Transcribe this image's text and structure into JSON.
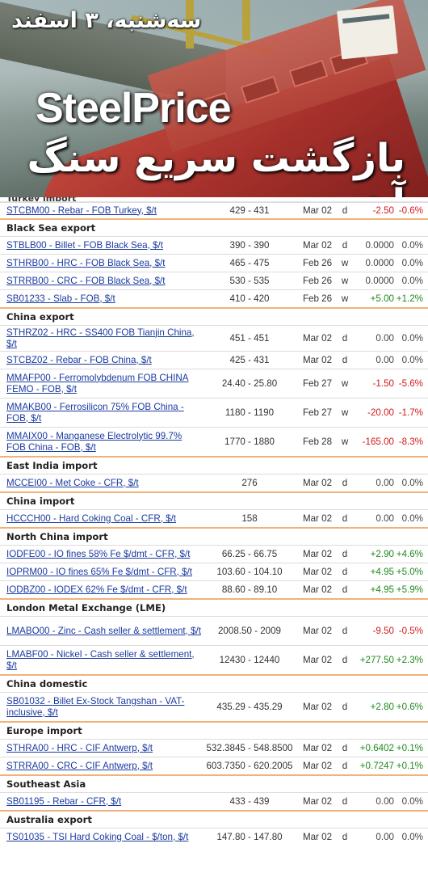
{
  "banner": {
    "date": "سه‌شنبه، ۳ اسفند",
    "brand": "SteelPrice",
    "headline": "بازگشت سریع سنگ آهن"
  },
  "cut_section": "Turkey import",
  "sections": [
    {
      "title": "",
      "rows": [
        {
          "name": "STCBM00 - Rebar - FOB Turkey, $/t",
          "range": "429 - 431",
          "date": "Mar 02",
          "unit": "d",
          "change": "-2.50",
          "pct": "-0.6%",
          "dir": "neg",
          "h": 20
        }
      ]
    },
    {
      "title": "Black Sea export",
      "rows": [
        {
          "name": "STBLB00 - Billet - FOB Black Sea, $/t",
          "range": "390 - 390",
          "date": "Mar 02",
          "unit": "d",
          "change": "0.0000",
          "pct": "0.0%",
          "dir": "zero",
          "h": 22
        },
        {
          "name": "STHRB00 - HRC - FOB Black Sea, $/t",
          "range": "465 - 475",
          "date": "Feb 26",
          "unit": "w",
          "change": "0.0000",
          "pct": "0.0%",
          "dir": "zero",
          "h": 22
        },
        {
          "name": "STRRB00 - CRC - FOB Black Sea, $/t",
          "range": "530 - 535",
          "date": "Feb 26",
          "unit": "w",
          "change": "0.0000",
          "pct": "0.0%",
          "dir": "zero",
          "h": 22
        },
        {
          "name": "SB01233 - Slab - FOB, $/t",
          "range": "410 - 420",
          "date": "Feb 26",
          "unit": "w",
          "change": "+5.00",
          "pct": "+1.2%",
          "dir": "pos",
          "h": 22
        }
      ]
    },
    {
      "title": "China export",
      "rows": [
        {
          "name": "STHRZ02 - HRC - SS400 FOB Tianjin China, $/t",
          "range": "451 - 451",
          "date": "Mar 02",
          "unit": "d",
          "change": "0.00",
          "pct": "0.0%",
          "dir": "zero",
          "h": 32
        },
        {
          "name": "STCBZ02 - Rebar - FOB China, $/t",
          "range": "425 - 431",
          "date": "Mar 02",
          "unit": "d",
          "change": "0.00",
          "pct": "0.0%",
          "dir": "zero",
          "h": 22
        },
        {
          "name": "MMAFP00 - Ferromolybdenum FOB CHINA FEMO - FOB, $/t",
          "range": "24.40 - 25.80",
          "date": "Feb 27",
          "unit": "w",
          "change": "-1.50",
          "pct": "-5.6%",
          "dir": "neg",
          "h": 36
        },
        {
          "name": "MMAKB00 - Ferrosilicon 75% FOB China - FOB, $/t",
          "range": "1180 - 1190",
          "date": "Feb 27",
          "unit": "w",
          "change": "-20.00",
          "pct": "-1.7%",
          "dir": "neg",
          "h": 36
        },
        {
          "name": "MMAIX00 - Manganese Electrolytic 99.7% FOB China - FOB, $/t",
          "range": "1770 - 1880",
          "date": "Feb 28",
          "unit": "w",
          "change": "-165.00",
          "pct": "-8.3%",
          "dir": "neg",
          "h": 36
        }
      ]
    },
    {
      "title": "East India import",
      "rows": [
        {
          "name": "MCCEI00 - Met Coke - CFR, $/t",
          "range": "276",
          "date": "Mar 02",
          "unit": "d",
          "change": "0.00",
          "pct": "0.0%",
          "dir": "zero",
          "h": 22
        }
      ]
    },
    {
      "title": "China import",
      "rows": [
        {
          "name": "HCCCH00 - Hard Coking Coal - CFR, $/t",
          "range": "158",
          "date": "Mar 02",
          "unit": "d",
          "change": "0.00",
          "pct": "0.0%",
          "dir": "zero",
          "h": 22
        }
      ]
    },
    {
      "title": "North China import",
      "rows": [
        {
          "name": "IODFE00 - IO fines 58% Fe $/dmt - CFR, $/t",
          "range": "66.25 - 66.75",
          "date": "Mar 02",
          "unit": "d",
          "change": "+2.90",
          "pct": "+4.6%",
          "dir": "pos",
          "h": 22
        },
        {
          "name": "IOPRM00 - IO fines 65% Fe $/dmt - CFR, $/t",
          "range": "103.60 - 104.10",
          "date": "Mar 02",
          "unit": "d",
          "change": "+4.95",
          "pct": "+5.0%",
          "dir": "pos",
          "h": 22
        },
        {
          "name": "IODBZ00 - IODEX 62% Fe $/dmt - CFR, $/t",
          "range": "88.60 - 89.10",
          "date": "Mar 02",
          "unit": "d",
          "change": "+4.95",
          "pct": "+5.9%",
          "dir": "pos",
          "h": 22
        }
      ]
    },
    {
      "title": "London Metal Exchange (LME)",
      "rows": [
        {
          "name": "LMABO00 - Zinc - Cash seller & settlement, $/t",
          "range": "2008.50 - 2009",
          "date": "Mar 02",
          "unit": "d",
          "change": "-9.50",
          "pct": "-0.5%",
          "dir": "neg",
          "h": 36
        },
        {
          "name": "LMABF00 - Nickel - Cash seller & settlement, $/t",
          "range": "12430 - 12440",
          "date": "Mar 02",
          "unit": "d",
          "change": "+277.50",
          "pct": "+2.3%",
          "dir": "pos",
          "h": 36
        }
      ]
    },
    {
      "title": "China domestic",
      "rows": [
        {
          "name": "SB01032 - Billet Ex-Stock Tangshan - VAT-inclusive, $/t",
          "range": "435.29 - 435.29",
          "date": "Mar 02",
          "unit": "d",
          "change": "+2.80",
          "pct": "+0.6%",
          "dir": "pos",
          "h": 36
        }
      ]
    },
    {
      "title": "Europe import",
      "rows": [
        {
          "name": "STHRA00 - HRC - CIF Antwerp, $/t",
          "range": "532.3845 - 548.8500",
          "date": "Mar 02",
          "unit": "d",
          "change": "+0.6402",
          "pct": "+0.1%",
          "dir": "pos",
          "h": 22
        },
        {
          "name": "STRRA00 - CRC - CIF Antwerp, $/t",
          "range": "603.7350 - 620.2005",
          "date": "Mar 02",
          "unit": "d",
          "change": "+0.7247",
          "pct": "+0.1%",
          "dir": "pos",
          "h": 22
        }
      ]
    },
    {
      "title": "Southeast Asia",
      "rows": [
        {
          "name": "SB01195 - Rebar - CFR, $/t",
          "range": "433 - 439",
          "date": "Mar 02",
          "unit": "d",
          "change": "0.00",
          "pct": "0.0%",
          "dir": "zero",
          "h": 22
        }
      ]
    },
    {
      "title": "Australia export",
      "rows": [
        {
          "name": "TS01035 - TSI Hard Coking Coal - $/ton, $/t",
          "range": "147.80 - 147.80",
          "date": "Mar 02",
          "unit": "d",
          "change": "0.00",
          "pct": "0.0%",
          "dir": "zero",
          "h": 22
        }
      ]
    }
  ]
}
